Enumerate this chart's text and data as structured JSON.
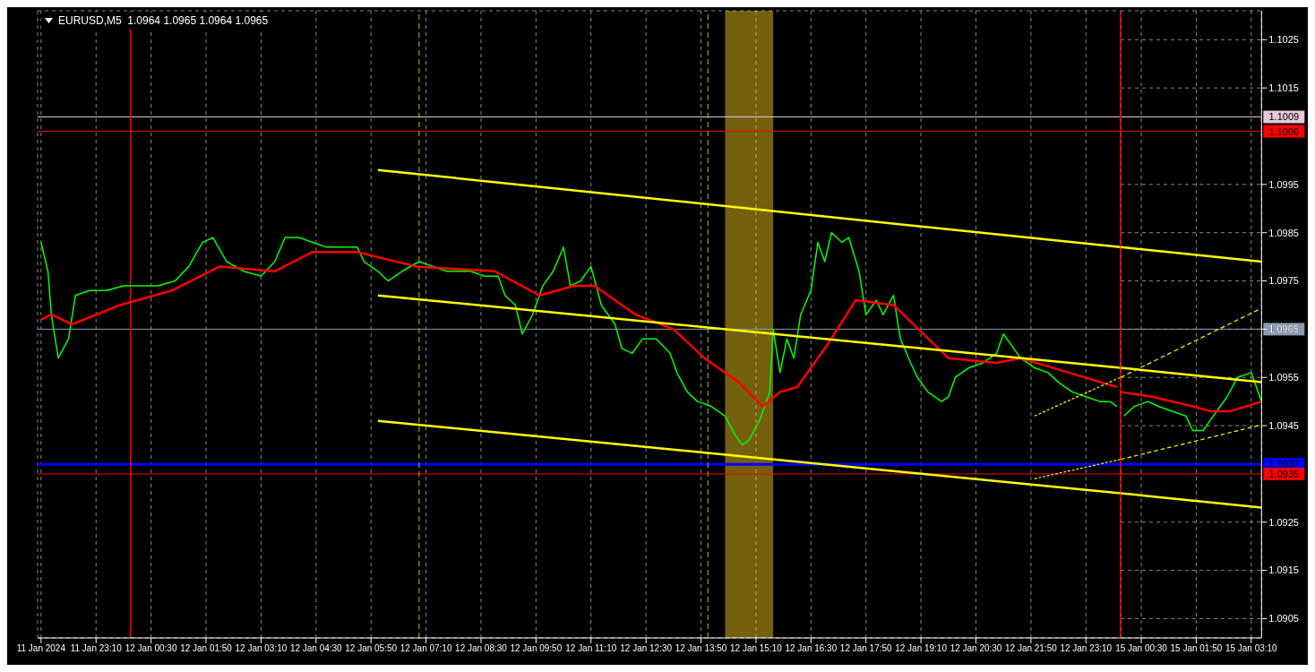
{
  "chart_data": [
    {
      "type": "line",
      "title": "EURUSD,M5  1.0964 1.0965 1.0964 1.0965",
      "grid": true,
      "tick_labels": "x",
      "xlim": [
        "2024-01-11T21:45",
        "2024-01-13T00:00"
      ],
      "ylim": [
        1.0901,
        1.1031
      ],
      "xticks": [
        {
          "value": "2024-01-11T21:50",
          "label": "11 Jan 2024"
        },
        {
          "value": "2024-01-11T23:10",
          "label": "11 Jan 23:10"
        },
        {
          "value": "2024-01-12T00:30",
          "label": "12 Jan 00:30"
        },
        {
          "value": "2024-01-12T01:50",
          "label": "12 Jan 01:50"
        },
        {
          "value": "2024-01-12T03:10",
          "label": "12 Jan 03:10"
        },
        {
          "value": "2024-01-12T04:30",
          "label": "12 Jan 04:30"
        },
        {
          "value": "2024-01-12T05:50",
          "label": "12 Jan 05:50"
        },
        {
          "value": "2024-01-12T07:10",
          "label": "12 Jan 07:10"
        },
        {
          "value": "2024-01-12T08:30",
          "label": "12 Jan 08:30"
        },
        {
          "value": "2024-01-12T09:50",
          "label": "12 Jan 09:50"
        },
        {
          "value": "2024-01-12T11:10",
          "label": "12 Jan 11:10"
        },
        {
          "value": "2024-01-12T12:30",
          "label": "12 Jan 12:30"
        },
        {
          "value": "2024-01-12T13:50",
          "label": "12 Jan 13:50"
        },
        {
          "value": "2024-01-12T15:10",
          "label": "12 Jan 15:10"
        },
        {
          "value": "2024-01-12T16:30",
          "label": "12 Jan 16:30"
        },
        {
          "value": "2024-01-12T17:50",
          "label": "12 Jan 17:50"
        },
        {
          "value": "2024-01-12T19:10",
          "label": "12 Jan 19:10"
        },
        {
          "value": "2024-01-12T20:30",
          "label": "12 Jan 20:30"
        },
        {
          "value": "2024-01-12T21:50",
          "label": "12 Jan 21:50"
        },
        {
          "value": "2024-01-12T23:10",
          "label": "12 Jan 23:10"
        }
      ],
      "yticks": [
        1.0905,
        1.0915,
        1.0925,
        1.0945,
        1.0955,
        1.0965,
        1.0975,
        1.0985,
        1.0995,
        1.1015,
        1.1025
      ],
      "series": [
        {
          "color": "#00ff00",
          "x": [
            "2024-01-11T21:50",
            "2024-01-11T22:00",
            "2024-01-11T22:05",
            "2024-01-11T22:15",
            "2024-01-11T22:30",
            "2024-01-11T22:40",
            "2024-01-11T23:00",
            "2024-01-11T23:25",
            "2024-01-11T23:50",
            "2024-01-12T00:15",
            "2024-01-12T00:40",
            "2024-01-12T01:05",
            "2024-01-12T01:25",
            "2024-01-12T01:45",
            "2024-01-12T02:00",
            "2024-01-12T02:20",
            "2024-01-12T02:45",
            "2024-01-12T03:10",
            "2024-01-12T03:30",
            "2024-01-12T03:45",
            "2024-01-12T04:05",
            "2024-01-12T04:25",
            "2024-01-12T04:45",
            "2024-01-12T05:10",
            "2024-01-12T05:30",
            "2024-01-12T05:40",
            "2024-01-12T06:00",
            "2024-01-12T06:15",
            "2024-01-12T06:35",
            "2024-01-12T07:00",
            "2024-01-12T07:20",
            "2024-01-12T07:40",
            "2024-01-12T08:00",
            "2024-01-12T08:15",
            "2024-01-12T08:35",
            "2024-01-12T08:55",
            "2024-01-12T09:05",
            "2024-01-12T09:20",
            "2024-01-12T09:30",
            "2024-01-12T09:45",
            "2024-01-12T10:00",
            "2024-01-12T10:15",
            "2024-01-12T10:30",
            "2024-01-12T10:40",
            "2024-01-12T10:55",
            "2024-01-12T11:10",
            "2024-01-12T11:25",
            "2024-01-12T11:45",
            "2024-01-12T11:55",
            "2024-01-12T12:10",
            "2024-01-12T12:25",
            "2024-01-12T12:45",
            "2024-01-12T13:05",
            "2024-01-12T13:15",
            "2024-01-12T13:30",
            "2024-01-12T13:45",
            "2024-01-12T14:05",
            "2024-01-12T14:25",
            "2024-01-12T14:40",
            "2024-01-12T14:50",
            "2024-01-12T15:00",
            "2024-01-12T15:15",
            "2024-01-12T15:30",
            "2024-01-12T15:35",
            "2024-01-12T15:45",
            "2024-01-12T15:55",
            "2024-01-12T16:05",
            "2024-01-12T16:15",
            "2024-01-12T16:30",
            "2024-01-12T16:40",
            "2024-01-12T16:50",
            "2024-01-12T17:00",
            "2024-01-12T17:15",
            "2024-01-12T17:25",
            "2024-01-12T17:40",
            "2024-01-12T17:50",
            "2024-01-12T18:05",
            "2024-01-12T18:15",
            "2024-01-12T18:30",
            "2024-01-12T18:40",
            "2024-01-12T18:55",
            "2024-01-12T19:05",
            "2024-01-12T19:20",
            "2024-01-12T19:40",
            "2024-01-12T19:50",
            "2024-01-12T20:00",
            "2024-01-12T20:20",
            "2024-01-12T20:40",
            "2024-01-12T21:00",
            "2024-01-12T21:10",
            "2024-01-12T21:25",
            "2024-01-12T21:35",
            "2024-01-12T21:55",
            "2024-01-12T22:15",
            "2024-01-12T22:30",
            "2024-01-12T22:50",
            "2024-01-12T23:10",
            "2024-01-12T23:30",
            "2024-01-12T23:45",
            "2024-01-12T23:55"
          ],
          "values": [
            1.0983,
            1.0977,
            1.0968,
            1.0959,
            1.0963,
            1.0972,
            1.0973,
            1.0973,
            1.0974,
            1.0974,
            1.0974,
            1.0975,
            1.0978,
            1.0983,
            1.0984,
            1.0979,
            1.0977,
            1.0976,
            1.0979,
            1.0984,
            1.0984,
            1.0983,
            1.0982,
            1.0982,
            1.0982,
            1.0979,
            1.0977,
            1.0975,
            1.0977,
            1.0979,
            1.0978,
            1.0977,
            1.0977,
            1.0977,
            1.0976,
            1.0976,
            1.0972,
            1.097,
            1.0964,
            1.0968,
            1.0974,
            1.0977,
            1.0982,
            1.0974,
            1.0975,
            1.0978,
            1.097,
            1.0966,
            1.0961,
            1.096,
            1.0963,
            1.0963,
            1.096,
            1.0956,
            1.0952,
            1.095,
            1.0949,
            1.0947,
            1.0943,
            1.0941,
            1.0942,
            1.0946,
            1.0952,
            1.0965,
            1.0956,
            1.0963,
            1.0959,
            1.0968,
            1.0973,
            1.0983,
            1.0979,
            1.0985,
            1.0983,
            1.0984,
            1.0977,
            1.0968,
            1.0971,
            1.0968,
            1.0972,
            1.0963,
            1.0958,
            1.0955,
            1.0952,
            1.095,
            1.0951,
            1.0955,
            1.0957,
            1.0958,
            1.096,
            1.0964,
            1.0961,
            1.0959,
            1.0957,
            1.0956,
            1.0954,
            1.0952,
            1.0951,
            1.095,
            1.095,
            1.0949
          ]
        },
        {
          "color": "#ff0000",
          "x": [
            "2024-01-11T21:50",
            "2024-01-11T22:05",
            "2024-01-11T22:35",
            "2024-01-11T23:45",
            "2024-01-12T01:00",
            "2024-01-12T02:10",
            "2024-01-12T03:30",
            "2024-01-12T04:25",
            "2024-01-12T05:30",
            "2024-01-12T06:55",
            "2024-01-12T08:50",
            "2024-01-12T09:55",
            "2024-01-12T10:45",
            "2024-01-12T11:15",
            "2024-01-12T12:15",
            "2024-01-12T13:10",
            "2024-01-12T13:55",
            "2024-01-12T14:45",
            "2024-01-12T15:20",
            "2024-01-12T15:45",
            "2024-01-12T16:10",
            "2024-01-12T16:55",
            "2024-01-12T17:35",
            "2024-01-12T18:30",
            "2024-01-12T19:50",
            "2024-01-12T21:00",
            "2024-01-12T21:35",
            "2024-01-12T22:45",
            "2024-01-12T23:55"
          ],
          "values": [
            1.0967,
            1.0968,
            1.0966,
            1.097,
            1.0973,
            1.0978,
            1.0977,
            1.0981,
            1.0981,
            1.0978,
            1.0977,
            1.0972,
            1.0974,
            1.0974,
            1.0968,
            1.0965,
            1.0959,
            1.0954,
            1.0949,
            1.0952,
            1.0953,
            1.0962,
            1.0971,
            1.097,
            1.0959,
            1.0958,
            1.0959,
            1.0956,
            1.0953
          ]
        },
        {
          "color": "#ffff00",
          "x": [
            "2024-01-12T06:00",
            "2024-01-13T00:00"
          ],
          "values": [
            1.0998,
            1.0982
          ]
        },
        {
          "color": "#ffff00",
          "x": [
            "2024-01-12T06:00",
            "2024-01-13T00:00"
          ],
          "values": [
            1.0972,
            1.0957
          ]
        },
        {
          "color": "#ffff00",
          "x": [
            "2024-01-12T06:00",
            "2024-01-13T00:00"
          ],
          "values": [
            1.0946,
            1.0931
          ]
        },
        {
          "color": "#ffff00",
          "line_style": "dashed",
          "x": [
            "2024-01-12T21:55",
            "2024-01-13T00:00"
          ],
          "values": [
            1.0947,
            1.0955
          ]
        },
        {
          "color": "#ffff00",
          "line_style": "dashed",
          "x": [
            "2024-01-12T21:55",
            "2024-01-13T00:00"
          ],
          "values": [
            1.0934,
            1.0938
          ]
        }
      ],
      "ref_lines": [
        {
          "axis": "y",
          "value": 1.1009,
          "color": "#e6c8d8"
        },
        {
          "axis": "y",
          "value": 1.1006,
          "color": "#ff0000"
        },
        {
          "axis": "y",
          "value": 1.0965,
          "color": "#8c9cb0"
        },
        {
          "axis": "y",
          "value": 1.0937,
          "color": "#0000ff"
        },
        {
          "axis": "y",
          "value": 1.0935,
          "color": "#ff0000"
        },
        {
          "axis": "x",
          "value": "2024-01-12T00:00",
          "color": "#ff0000"
        },
        {
          "axis": "x",
          "value": "2024-01-12T07:00",
          "color": "#9acd32",
          "line_style": "dashed"
        },
        {
          "axis": "x",
          "value": "2024-01-12T14:00",
          "color": "#9acd32",
          "line_style": "dashed"
        }
      ],
      "bands": [
        {
          "axis": "x",
          "from": "2024-01-12T14:25",
          "to": "2024-01-12T15:35",
          "color": "#ffd21e"
        }
      ]
    },
    {
      "type": "line",
      "grid": true,
      "xlim": [
        "2024-01-15T00:00",
        "2024-01-15T03:25"
      ],
      "ylim": [
        1.0901,
        1.1031
      ],
      "xticks": [
        {
          "value": "2024-01-15T00:30",
          "label": "15 Jan 00:30"
        },
        {
          "value": "2024-01-15T01:50",
          "label": "15 Jan 01:50"
        },
        {
          "value": "2024-01-15T03:10",
          "label": "15 Jan 03:10"
        }
      ],
      "yticks": [
        1.0905,
        1.0915,
        1.0925,
        1.0945,
        1.0955,
        1.0965,
        1.0975,
        1.0985,
        1.0995,
        1.1015,
        1.1025
      ],
      "series": [
        {
          "color": "#00ff00",
          "x": [
            "2024-01-15T00:05",
            "2024-01-15T00:20",
            "2024-01-15T00:40",
            "2024-01-15T00:55",
            "2024-01-15T01:15",
            "2024-01-15T01:35",
            "2024-01-15T01:45",
            "2024-01-15T02:00",
            "2024-01-15T02:10",
            "2024-01-15T02:25",
            "2024-01-15T02:35",
            "2024-01-15T02:50",
            "2024-01-15T03:10",
            "2024-01-15T03:25"
          ],
          "values": [
            1.0947,
            1.0949,
            1.095,
            1.0949,
            1.0948,
            1.0947,
            1.0944,
            1.0944,
            1.0946,
            1.0949,
            1.0951,
            1.0955,
            1.0956,
            1.095
          ]
        },
        {
          "color": "#ff0000",
          "x": [
            "2024-01-15T00:00",
            "2024-01-15T00:45",
            "2024-01-15T01:45",
            "2024-01-15T02:10",
            "2024-01-15T02:40",
            "2024-01-15T03:25"
          ],
          "values": [
            1.0952,
            1.0951,
            1.0949,
            1.0948,
            1.0948,
            1.095
          ]
        },
        {
          "color": "#ffff00",
          "x": [
            "2024-01-15T00:00",
            "2024-01-15T03:25"
          ],
          "values": [
            1.0982,
            1.0979
          ]
        },
        {
          "color": "#ffff00",
          "x": [
            "2024-01-15T00:00",
            "2024-01-15T03:25"
          ],
          "values": [
            1.0957,
            1.0954
          ]
        },
        {
          "color": "#ffff00",
          "x": [
            "2024-01-15T00:00",
            "2024-01-15T03:25"
          ],
          "values": [
            1.0931,
            1.0928
          ]
        },
        {
          "color": "#ffff00",
          "line_style": "dashed",
          "x": [
            "2024-01-15T00:00",
            "2024-01-15T03:20"
          ],
          "values": [
            1.0955,
            1.0969
          ]
        },
        {
          "color": "#ffff00",
          "line_style": "dashed",
          "x": [
            "2024-01-15T00:00",
            "2024-01-15T03:20"
          ],
          "values": [
            1.0938,
            1.0945
          ]
        }
      ],
      "ref_lines": [
        {
          "axis": "y",
          "value": 1.1009,
          "label": "1.1009",
          "color": "#e6c8d8"
        },
        {
          "axis": "y",
          "value": 1.1006,
          "label": "1.1006",
          "color": "#ff0000"
        },
        {
          "axis": "y",
          "value": 1.0965,
          "label": "1.0965",
          "color": "#8c9cb0"
        },
        {
          "axis": "y",
          "value": 1.0937,
          "label": "1.0937",
          "color": "#0000ff"
        },
        {
          "axis": "y",
          "value": 1.0935,
          "label": "1.0935",
          "color": "#ff0000"
        },
        {
          "axis": "x",
          "value": "2024-01-15T00:00",
          "color": "#ff0000"
        }
      ]
    }
  ]
}
